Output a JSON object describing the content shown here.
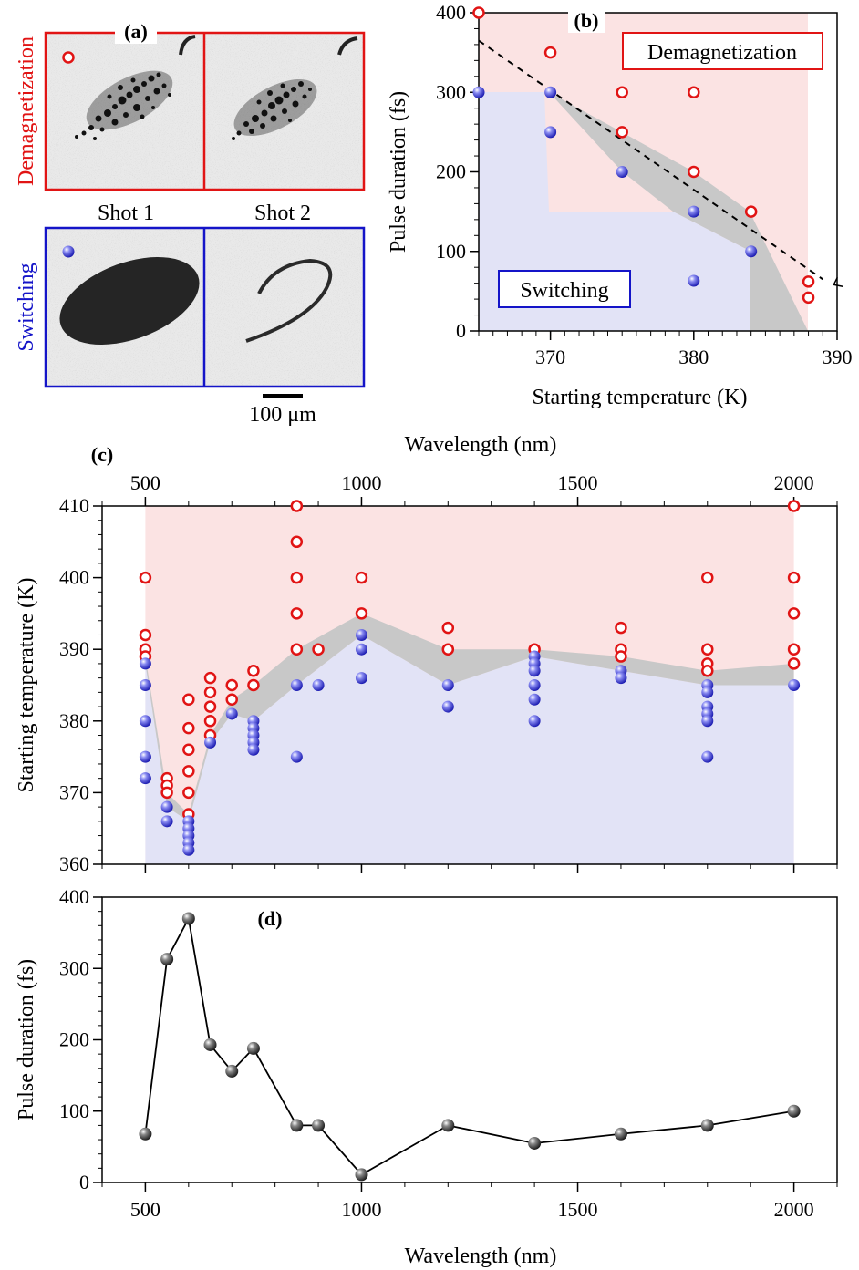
{
  "panel_a": {
    "label": "(a)",
    "row_labels": [
      "Demagnetization",
      "Switching"
    ],
    "shot_labels": [
      "Shot 1",
      "Shot 2"
    ],
    "scale_bar": "100 μm"
  },
  "colors": {
    "demag": "#e11414",
    "switch": "#1414c8",
    "demag_fill": "#fbe3e3",
    "switch_fill": "#e2e3f6",
    "band": "#c8c8c8"
  },
  "chart_data": [
    {
      "panel": "(b)",
      "type": "scatter",
      "xlabel": "Starting temperature (K)",
      "ylabel": "Pulse duration (fs)",
      "xlim": [
        365,
        390
      ],
      "ylim": [
        0,
        400
      ],
      "xticks": [
        370,
        380,
        390
      ],
      "yticks": [
        0,
        100,
        200,
        300,
        400
      ],
      "legend": [
        "Demagnetization",
        "Switching"
      ],
      "series": [
        {
          "name": "Demagnetization",
          "points": [
            [
              365,
              400
            ],
            [
              370,
              350
            ],
            [
              375,
              300
            ],
            [
              375,
              250
            ],
            [
              380,
              300
            ],
            [
              380,
              200
            ],
            [
              384,
              150
            ],
            [
              388,
              62
            ],
            [
              388,
              42
            ]
          ]
        },
        {
          "name": "Switching",
          "points": [
            [
              365,
              300
            ],
            [
              370,
              300
            ],
            [
              370,
              250
            ],
            [
              375,
              200
            ],
            [
              380,
              150
            ],
            [
              380,
              63
            ],
            [
              384,
              100
            ]
          ]
        }
      ],
      "fit_line": [
        [
          365,
          365
        ],
        [
          389,
          65
        ]
      ]
    },
    {
      "panel": "(c)",
      "type": "scatter",
      "xlabel": "Wavelength (nm)",
      "ylabel": "Starting temperature (K)",
      "xlim": [
        400,
        2100
      ],
      "ylim": [
        360,
        410
      ],
      "xticks": [
        500,
        1000,
        1500,
        2000
      ],
      "yticks": [
        360,
        370,
        380,
        390,
        400,
        410
      ],
      "series": [
        {
          "name": "Demagnetization",
          "points": [
            [
              500,
              400
            ],
            [
              500,
              392
            ],
            [
              500,
              390
            ],
            [
              500,
              389
            ],
            [
              550,
              372
            ],
            [
              550,
              371
            ],
            [
              550,
              370
            ],
            [
              600,
              383
            ],
            [
              600,
              379
            ],
            [
              600,
              376
            ],
            [
              600,
              373
            ],
            [
              600,
              370
            ],
            [
              600,
              367
            ],
            [
              650,
              386
            ],
            [
              650,
              384
            ],
            [
              650,
              382
            ],
            [
              650,
              380
            ],
            [
              650,
              378
            ],
            [
              700,
              385
            ],
            [
              700,
              383
            ],
            [
              750,
              387
            ],
            [
              750,
              385
            ],
            [
              850,
              410
            ],
            [
              850,
              405
            ],
            [
              850,
              400
            ],
            [
              850,
              395
            ],
            [
              850,
              390
            ],
            [
              900,
              390
            ],
            [
              1000,
              400
            ],
            [
              1000,
              395
            ],
            [
              1200,
              393
            ],
            [
              1200,
              390
            ],
            [
              1400,
              390
            ],
            [
              1600,
              393
            ],
            [
              1600,
              390
            ],
            [
              1600,
              389
            ],
            [
              1800,
              400
            ],
            [
              1800,
              390
            ],
            [
              1800,
              388
            ],
            [
              1800,
              387
            ],
            [
              2000,
              410
            ],
            [
              2000,
              400
            ],
            [
              2000,
              395
            ],
            [
              2000,
              390
            ],
            [
              2000,
              388
            ]
          ]
        },
        {
          "name": "Switching",
          "points": [
            [
              500,
              388
            ],
            [
              500,
              385
            ],
            [
              500,
              380
            ],
            [
              500,
              375
            ],
            [
              500,
              372
            ],
            [
              550,
              368
            ],
            [
              550,
              366
            ],
            [
              600,
              366
            ],
            [
              600,
              365
            ],
            [
              600,
              364
            ],
            [
              600,
              363
            ],
            [
              600,
              362
            ],
            [
              650,
              377
            ],
            [
              700,
              381
            ],
            [
              750,
              380
            ],
            [
              750,
              379
            ],
            [
              750,
              378
            ],
            [
              750,
              377
            ],
            [
              750,
              376
            ],
            [
              850,
              385
            ],
            [
              850,
              375
            ],
            [
              900,
              385
            ],
            [
              1000,
              392
            ],
            [
              1000,
              390
            ],
            [
              1000,
              386
            ],
            [
              1200,
              385
            ],
            [
              1200,
              382
            ],
            [
              1400,
              389
            ],
            [
              1400,
              388
            ],
            [
              1400,
              387
            ],
            [
              1400,
              385
            ],
            [
              1400,
              383
            ],
            [
              1400,
              380
            ],
            [
              1600,
              387
            ],
            [
              1600,
              386
            ],
            [
              1800,
              385
            ],
            [
              1800,
              384
            ],
            [
              1800,
              382
            ],
            [
              1800,
              381
            ],
            [
              1800,
              380
            ],
            [
              1800,
              375
            ],
            [
              2000,
              385
            ]
          ]
        }
      ],
      "band_upper": [
        [
          500,
          389
        ],
        [
          550,
          370
        ],
        [
          600,
          367
        ],
        [
          650,
          378
        ],
        [
          700,
          383
        ],
        [
          750,
          385
        ],
        [
          850,
          390
        ],
        [
          1000,
          395
        ],
        [
          1200,
          390
        ],
        [
          1400,
          390
        ],
        [
          1600,
          389
        ],
        [
          1800,
          387
        ],
        [
          2000,
          388
        ]
      ],
      "band_lower": [
        [
          500,
          388
        ],
        [
          550,
          368
        ],
        [
          600,
          366
        ],
        [
          650,
          377
        ],
        [
          700,
          381
        ],
        [
          750,
          380
        ],
        [
          850,
          385
        ],
        [
          1000,
          392
        ],
        [
          1200,
          385
        ],
        [
          1400,
          389
        ],
        [
          1600,
          387
        ],
        [
          1800,
          385
        ],
        [
          2000,
          385
        ]
      ]
    },
    {
      "panel": "(d)",
      "type": "line",
      "xlabel": "Wavelength (nm)",
      "ylabel": "Pulse duration (fs)",
      "xlim": [
        400,
        2100
      ],
      "ylim": [
        0,
        400
      ],
      "xticks": [
        500,
        1000,
        1500,
        2000
      ],
      "yticks": [
        0,
        100,
        200,
        300,
        400
      ],
      "x": [
        500,
        550,
        600,
        650,
        700,
        750,
        850,
        900,
        1000,
        1200,
        1400,
        1600,
        1800,
        2000
      ],
      "y": [
        68,
        313,
        370,
        193,
        156,
        188,
        80,
        80,
        11,
        80,
        55,
        68,
        80,
        100
      ]
    }
  ]
}
